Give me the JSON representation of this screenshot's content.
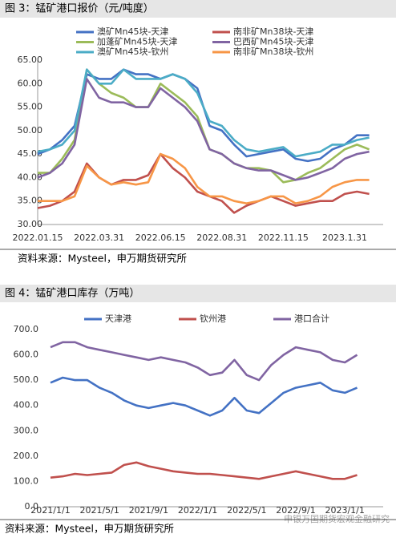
{
  "chart_data": [
    {
      "type": "line",
      "title": "图 3：锰矿港口报价（元/吨度）",
      "categories": [
        "2022.01.15",
        null,
        null,
        null,
        null,
        "2022.03.31",
        null,
        null,
        null,
        null,
        "2022.06.15",
        null,
        null,
        null,
        null,
        "2022.08.31",
        null,
        null,
        null,
        null,
        "2022.11.15",
        null,
        null,
        null,
        null,
        "2023.1.31",
        null,
        null
      ],
      "series": [
        {
          "name": "澳矿Mn45块-天津",
          "color": "#4472c4",
          "values": [
            45,
            46,
            48,
            51,
            62,
            61,
            61,
            63,
            62,
            62,
            61,
            62,
            61,
            59,
            51,
            50,
            47,
            44.5,
            45,
            45.5,
            46,
            44,
            43.5,
            44,
            46,
            47,
            49,
            49
          ]
        },
        {
          "name": "南非矿Mn38块-天津",
          "color": "#c0504d",
          "values": [
            33.5,
            34,
            35,
            37,
            43,
            40,
            38.5,
            39.5,
            39.5,
            40.5,
            45,
            42,
            40,
            37,
            36,
            35,
            32.5,
            34,
            35,
            36,
            35,
            34,
            34.5,
            35,
            35,
            36.5,
            37,
            36.5
          ]
        },
        {
          "name": "加蓬矿Mn45块-天津",
          "color": "#9bbb59",
          "values": [
            41,
            41,
            44,
            48,
            63,
            60,
            58,
            57,
            55,
            55,
            60,
            58,
            56,
            53,
            46,
            45,
            43,
            42,
            42,
            41.5,
            39,
            39.5,
            41,
            42,
            44,
            46,
            47,
            46
          ]
        },
        {
          "name": "巴西矿Mn45块-天津",
          "color": "#8064a2",
          "values": [
            40,
            41,
            43,
            47,
            61,
            57,
            56,
            56,
            55,
            55,
            59,
            57,
            55,
            52,
            46,
            45,
            43,
            42,
            41.5,
            41.5,
            40.5,
            39.5,
            40,
            41,
            42,
            44,
            45,
            45.5
          ]
        },
        {
          "name": "澳矿Mn45块-钦州",
          "color": "#4bacc6",
          "values": [
            45.5,
            46,
            47,
            50,
            63,
            60,
            60,
            63,
            61,
            61,
            61,
            62,
            61,
            58,
            52,
            51,
            48,
            46,
            45.5,
            46,
            46.5,
            44.5,
            45,
            45.5,
            47,
            47,
            48,
            48.5
          ]
        },
        {
          "name": "南非矿Mn38块-钦州",
          "color": "#f79646",
          "values": [
            35,
            35,
            35,
            36,
            42.5,
            40,
            38.5,
            39,
            38.5,
            39,
            45,
            44,
            42,
            38,
            36,
            36,
            35,
            34.5,
            35,
            36,
            36,
            34.5,
            35,
            36,
            38,
            39,
            39.5,
            39.5
          ]
        }
      ],
      "ylim": [
        30,
        65
      ],
      "yticks": [
        {
          "value": 30,
          "label": "30.00"
        },
        {
          "value": 35,
          "label": "35.00"
        },
        {
          "value": 40,
          "label": "40.00"
        },
        {
          "value": 45,
          "label": "45.00"
        },
        {
          "value": 50,
          "label": "50.00"
        },
        {
          "value": 55,
          "label": "55.00"
        },
        {
          "value": 60,
          "label": "60.00"
        },
        {
          "value": 65,
          "label": "65.00"
        }
      ],
      "grid": false,
      "source": "资料来源：Mysteel，申万期货研究所"
    },
    {
      "type": "line",
      "title": "图 4：锰矿港口库存（万吨）",
      "categories": [
        "2021/1/1",
        null,
        null,
        null,
        "2021/5/1",
        null,
        null,
        null,
        "2021/9/1",
        null,
        null,
        null,
        "2022/1/1",
        null,
        null,
        null,
        "2022/5/1",
        null,
        null,
        null,
        "2022/9/1",
        null,
        null,
        null,
        "2023/1/1",
        null
      ],
      "series": [
        {
          "name": "天津港",
          "color": "#4472c4",
          "values": [
            490,
            510,
            500,
            500,
            470,
            450,
            420,
            400,
            390,
            400,
            410,
            400,
            380,
            360,
            380,
            430,
            380,
            370,
            410,
            450,
            470,
            480,
            490,
            460,
            450,
            470
          ]
        },
        {
          "name": "钦州港",
          "color": "#c0504d",
          "values": [
            115,
            120,
            130,
            125,
            130,
            135,
            165,
            175,
            160,
            150,
            140,
            135,
            130,
            130,
            125,
            120,
            115,
            110,
            120,
            130,
            140,
            130,
            120,
            110,
            110,
            125
          ]
        },
        {
          "name": "港口合计",
          "color": "#8064a2",
          "values": [
            630,
            650,
            650,
            630,
            620,
            610,
            600,
            590,
            580,
            590,
            580,
            570,
            550,
            520,
            530,
            580,
            520,
            500,
            560,
            600,
            630,
            620,
            610,
            580,
            570,
            600
          ]
        }
      ],
      "ylim": [
        0,
        700
      ],
      "yticks": [
        {
          "value": 0,
          "label": "0.0"
        },
        {
          "value": 100,
          "label": "100.0"
        },
        {
          "value": 200,
          "label": "200.0"
        },
        {
          "value": 300,
          "label": "300.0"
        },
        {
          "value": 400,
          "label": "400.0"
        },
        {
          "value": 500,
          "label": "500.0"
        },
        {
          "value": 600,
          "label": "600.0"
        },
        {
          "value": 700,
          "label": "700.0"
        }
      ],
      "grid": false,
      "source": "资料来源：Mysteel，申万期货研究所"
    }
  ],
  "watermark": "申银万国期货宏观金融研究"
}
